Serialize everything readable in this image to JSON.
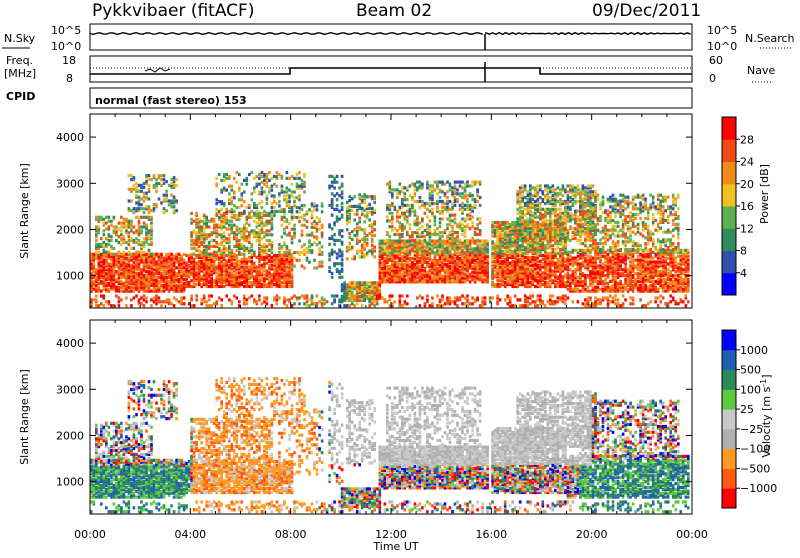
{
  "header": {
    "station": "Pykkvibaer (fitACF)",
    "beam": "Beam 02",
    "date": "09/Dec/2011"
  },
  "noise_panel": {
    "left_label": "N.Sky",
    "right_label": "N.Search",
    "left_ticks": [
      "10^5",
      "10^0"
    ],
    "right_ticks": [
      "10^5",
      "10^0"
    ]
  },
  "freq_panel": {
    "left_label_line1": "Freq.",
    "left_label_line2": "[MHz]",
    "right_label": "Nave",
    "left_ticks": [
      "18",
      "8"
    ],
    "right_ticks": [
      "60",
      "0"
    ],
    "cpid_label": "CPID",
    "cpid_text": "normal (fast stereo) 153"
  },
  "colors": {
    "power_scale": [
      "#0000ff",
      "#3050b0",
      "#2f8a5e",
      "#5fb04f",
      "#f0c020",
      "#f08a1a",
      "#f04a14",
      "#ff0000"
    ],
    "velocity_scale": [
      "#ff0000",
      "#ff5a10",
      "#ff9a20",
      "#b0b0b0",
      "#c8c8c8",
      "#60c840",
      "#2a8a5a",
      "#2060b0",
      "#0000ff"
    ]
  },
  "chart_data": [
    {
      "type": "heatmap",
      "name": "power",
      "x_range": [
        "00:00",
        "24:00"
      ],
      "ylabel": "Slant Range [km]",
      "ylim": [
        300,
        4500
      ],
      "y_ticks": [
        "1000",
        "2000",
        "3000",
        "4000"
      ],
      "x_ticks": [
        "00:00",
        "04:00",
        "08:00",
        "12:00",
        "16:00",
        "20:00",
        "00:00"
      ],
      "colorbar": {
        "label": "Power [dB]",
        "ticks": [
          "4",
          "8",
          "12",
          "16",
          "20",
          "24",
          "28"
        ],
        "range": [
          0,
          30
        ]
      }
    },
    {
      "type": "heatmap",
      "name": "velocity",
      "x_range": [
        "00:00",
        "24:00"
      ],
      "ylabel": "Slant Range [km]",
      "ylim": [
        300,
        4500
      ],
      "y_ticks": [
        "1000",
        "2000",
        "3000",
        "4000"
      ],
      "x_ticks": [
        "00:00",
        "04:00",
        "08:00",
        "12:00",
        "16:00",
        "20:00",
        "00:00"
      ],
      "xlabel": "Time UT",
      "colorbar": {
        "label": "Velocity [m s",
        "label_sup": "-1",
        "label_end": "]",
        "ticks": [
          "1000",
          "500",
          "100",
          "25",
          "−25",
          "−100",
          "−500",
          "−1000"
        ]
      }
    }
  ]
}
